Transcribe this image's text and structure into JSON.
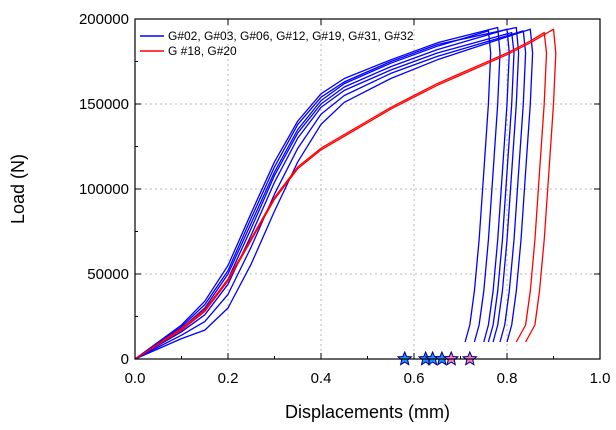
{
  "chart_data": {
    "type": "line",
    "title": "",
    "xlabel": "Displacements (mm)",
    "ylabel": "Load (N)",
    "xlim": [
      0.0,
      1.0
    ],
    "ylim": [
      0,
      200000
    ],
    "xticks": [
      "0.0",
      "0.2",
      "0.4",
      "0.6",
      "0.8",
      "1.0"
    ],
    "xtick_values": [
      0.0,
      0.2,
      0.4,
      0.6,
      0.8,
      1.0
    ],
    "yticks": [
      "0",
      "50000",
      "100000",
      "150000",
      "200000"
    ],
    "ytick_values": [
      0,
      50000,
      100000,
      150000,
      200000
    ],
    "grid": true,
    "legend_placement": "top-left",
    "legend": [
      {
        "label": "G#02, G#03, G#06, G#12, G#19, G#31, G#32",
        "color": "#0000ff"
      },
      {
        "label": "G #18, G#20",
        "color": "#ff0000"
      }
    ],
    "series": [
      {
        "group": 0,
        "color": "#0000ff",
        "x": [
          0,
          0.1,
          0.15,
          0.2,
          0.25,
          0.3,
          0.35,
          0.4,
          0.45,
          0.55,
          0.65,
          0.76,
          0.765,
          0.76,
          0.75,
          0.74,
          0.73,
          0.72,
          0.71
        ],
        "y": [
          0,
          18000,
          30000,
          50000,
          80000,
          110000,
          135000,
          152000,
          162000,
          174000,
          184000,
          193000,
          180000,
          150000,
          110000,
          70000,
          40000,
          20000,
          10000
        ]
      },
      {
        "group": 0,
        "color": "#0000ff",
        "x": [
          0,
          0.1,
          0.15,
          0.2,
          0.25,
          0.3,
          0.35,
          0.4,
          0.45,
          0.55,
          0.65,
          0.78,
          0.785,
          0.78,
          0.77,
          0.76,
          0.75,
          0.74,
          0.73
        ],
        "y": [
          0,
          20000,
          34000,
          55000,
          86000,
          116000,
          140000,
          156000,
          165000,
          176000,
          186000,
          195000,
          180000,
          150000,
          110000,
          70000,
          40000,
          20000,
          10000
        ]
      },
      {
        "group": 0,
        "color": "#0000ff",
        "x": [
          0,
          0.1,
          0.15,
          0.2,
          0.25,
          0.3,
          0.35,
          0.4,
          0.45,
          0.55,
          0.65,
          0.8,
          0.805,
          0.8,
          0.79,
          0.78,
          0.77,
          0.76,
          0.75
        ],
        "y": [
          0,
          17000,
          28000,
          47000,
          77000,
          108000,
          133000,
          150000,
          160000,
          172000,
          182000,
          194000,
          180000,
          150000,
          110000,
          70000,
          40000,
          20000,
          10000
        ]
      },
      {
        "group": 0,
        "color": "#0000ff",
        "x": [
          0,
          0.1,
          0.15,
          0.2,
          0.25,
          0.3,
          0.35,
          0.4,
          0.45,
          0.55,
          0.65,
          0.81,
          0.815,
          0.81,
          0.8,
          0.79,
          0.78,
          0.77,
          0.76
        ],
        "y": [
          0,
          16000,
          26000,
          44000,
          73000,
          104000,
          130000,
          148000,
          158000,
          170000,
          180000,
          192000,
          180000,
          150000,
          110000,
          70000,
          40000,
          20000,
          10000
        ]
      },
      {
        "group": 0,
        "color": "#0000ff",
        "x": [
          0,
          0.1,
          0.15,
          0.2,
          0.25,
          0.3,
          0.35,
          0.4,
          0.45,
          0.55,
          0.65,
          0.82,
          0.825,
          0.82,
          0.81,
          0.8,
          0.79,
          0.78,
          0.77
        ],
        "y": [
          0,
          19000,
          32000,
          52000,
          83000,
          113000,
          138000,
          154000,
          163000,
          175000,
          185000,
          195000,
          180000,
          150000,
          110000,
          70000,
          40000,
          20000,
          10000
        ]
      },
      {
        "group": 0,
        "color": "#0000ff",
        "x": [
          0,
          0.1,
          0.15,
          0.2,
          0.25,
          0.3,
          0.35,
          0.4,
          0.45,
          0.55,
          0.65,
          0.835,
          0.84,
          0.835,
          0.825,
          0.815,
          0.805,
          0.795,
          0.785
        ],
        "y": [
          0,
          14000,
          22000,
          38000,
          66000,
          97000,
          124000,
          144000,
          155000,
          168000,
          178000,
          193000,
          180000,
          150000,
          110000,
          70000,
          40000,
          20000,
          10000
        ]
      },
      {
        "group": 0,
        "color": "#0000ff",
        "x": [
          0,
          0.1,
          0.15,
          0.2,
          0.25,
          0.3,
          0.35,
          0.4,
          0.45,
          0.55,
          0.65,
          0.85,
          0.855,
          0.85,
          0.84,
          0.83,
          0.82,
          0.81,
          0.8
        ],
        "y": [
          0,
          12000,
          17000,
          30000,
          56000,
          87000,
          116000,
          138000,
          151000,
          165000,
          176000,
          194000,
          180000,
          150000,
          110000,
          70000,
          40000,
          20000,
          10000
        ]
      },
      {
        "group": 1,
        "color": "#ff0000",
        "x": [
          0,
          0.1,
          0.15,
          0.2,
          0.25,
          0.3,
          0.35,
          0.4,
          0.45,
          0.5,
          0.55,
          0.6,
          0.65,
          0.7,
          0.75,
          0.8,
          0.85,
          0.88,
          0.885,
          0.88,
          0.87,
          0.86,
          0.85,
          0.84,
          0.82
        ],
        "y": [
          0,
          18000,
          29000,
          47000,
          71000,
          95000,
          113000,
          124000,
          132000,
          140000,
          148000,
          155000,
          162000,
          168000,
          174000,
          180000,
          187000,
          192000,
          180000,
          150000,
          110000,
          70000,
          40000,
          20000,
          10000
        ]
      },
      {
        "group": 1,
        "color": "#ff0000",
        "x": [
          0,
          0.1,
          0.15,
          0.2,
          0.25,
          0.3,
          0.35,
          0.4,
          0.45,
          0.5,
          0.55,
          0.6,
          0.65,
          0.7,
          0.75,
          0.8,
          0.85,
          0.9,
          0.905,
          0.9,
          0.89,
          0.88,
          0.87,
          0.86,
          0.84
        ],
        "y": [
          0,
          17000,
          28000,
          46000,
          70000,
          94000,
          112000,
          123000,
          131000,
          139000,
          147000,
          154000,
          161000,
          167000,
          173000,
          179000,
          186000,
          194000,
          180000,
          150000,
          110000,
          70000,
          40000,
          20000,
          10000
        ]
      }
    ],
    "markers": [
      {
        "x": 0.58,
        "y": 0,
        "color": "#1e90ff"
      },
      {
        "x": 0.625,
        "y": 0,
        "color": "#1e90ff"
      },
      {
        "x": 0.64,
        "y": 0,
        "color": "#1e90ff"
      },
      {
        "x": 0.66,
        "y": 0,
        "color": "#1e90ff"
      },
      {
        "x": 0.68,
        "y": 0,
        "color": "#ff7fbf"
      },
      {
        "x": 0.72,
        "y": 0,
        "color": "#ff7fbf"
      }
    ]
  }
}
